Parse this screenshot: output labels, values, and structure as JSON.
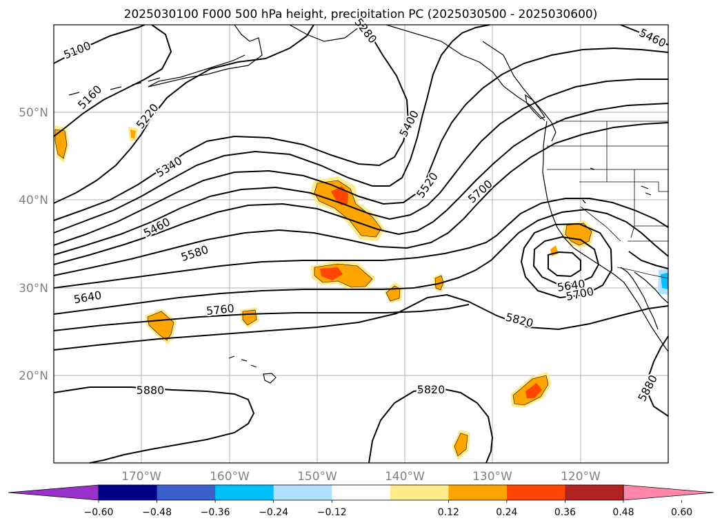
{
  "title": "2025030100 F000 500 hPa height, precipitation PC (2025030500 - 2025030600)",
  "lat_labels": [
    "50°N",
    "40°N",
    "30°N",
    "20°N"
  ],
  "lon_labels": [
    "170°W",
    "160°W",
    "150°W",
    "140°W",
    "130°W",
    "120°W"
  ],
  "contour_labels": [
    "5100",
    "5160",
    "5220",
    "5340",
    "5460",
    "5580",
    "5640",
    "5760",
    "5880",
    "5400",
    "5520",
    "5700",
    "5640",
    "5700",
    "5820",
    "5820",
    "5880",
    "5460",
    "5280"
  ],
  "colorbar": {
    "ticks": [
      "−0.60",
      "−0.48",
      "−0.36",
      "−0.24",
      "−0.12",
      "0.12",
      "0.24",
      "0.36",
      "0.48",
      "0.60"
    ],
    "colors": [
      "#9932cc",
      "#00008b",
      "#3a5fcd",
      "#00bfff",
      "#b0e2ff",
      "#ffffff",
      "#ffeb8b",
      "#ffa500",
      "#ff4500",
      "#b22222",
      "#ff88aa"
    ]
  },
  "map_extent": {
    "lon": [
      -180,
      -110
    ],
    "lat": [
      10,
      60
    ]
  },
  "colors": {
    "contour": "#000000",
    "gridline": "#b0b0b0",
    "tick_label": "#808080"
  }
}
